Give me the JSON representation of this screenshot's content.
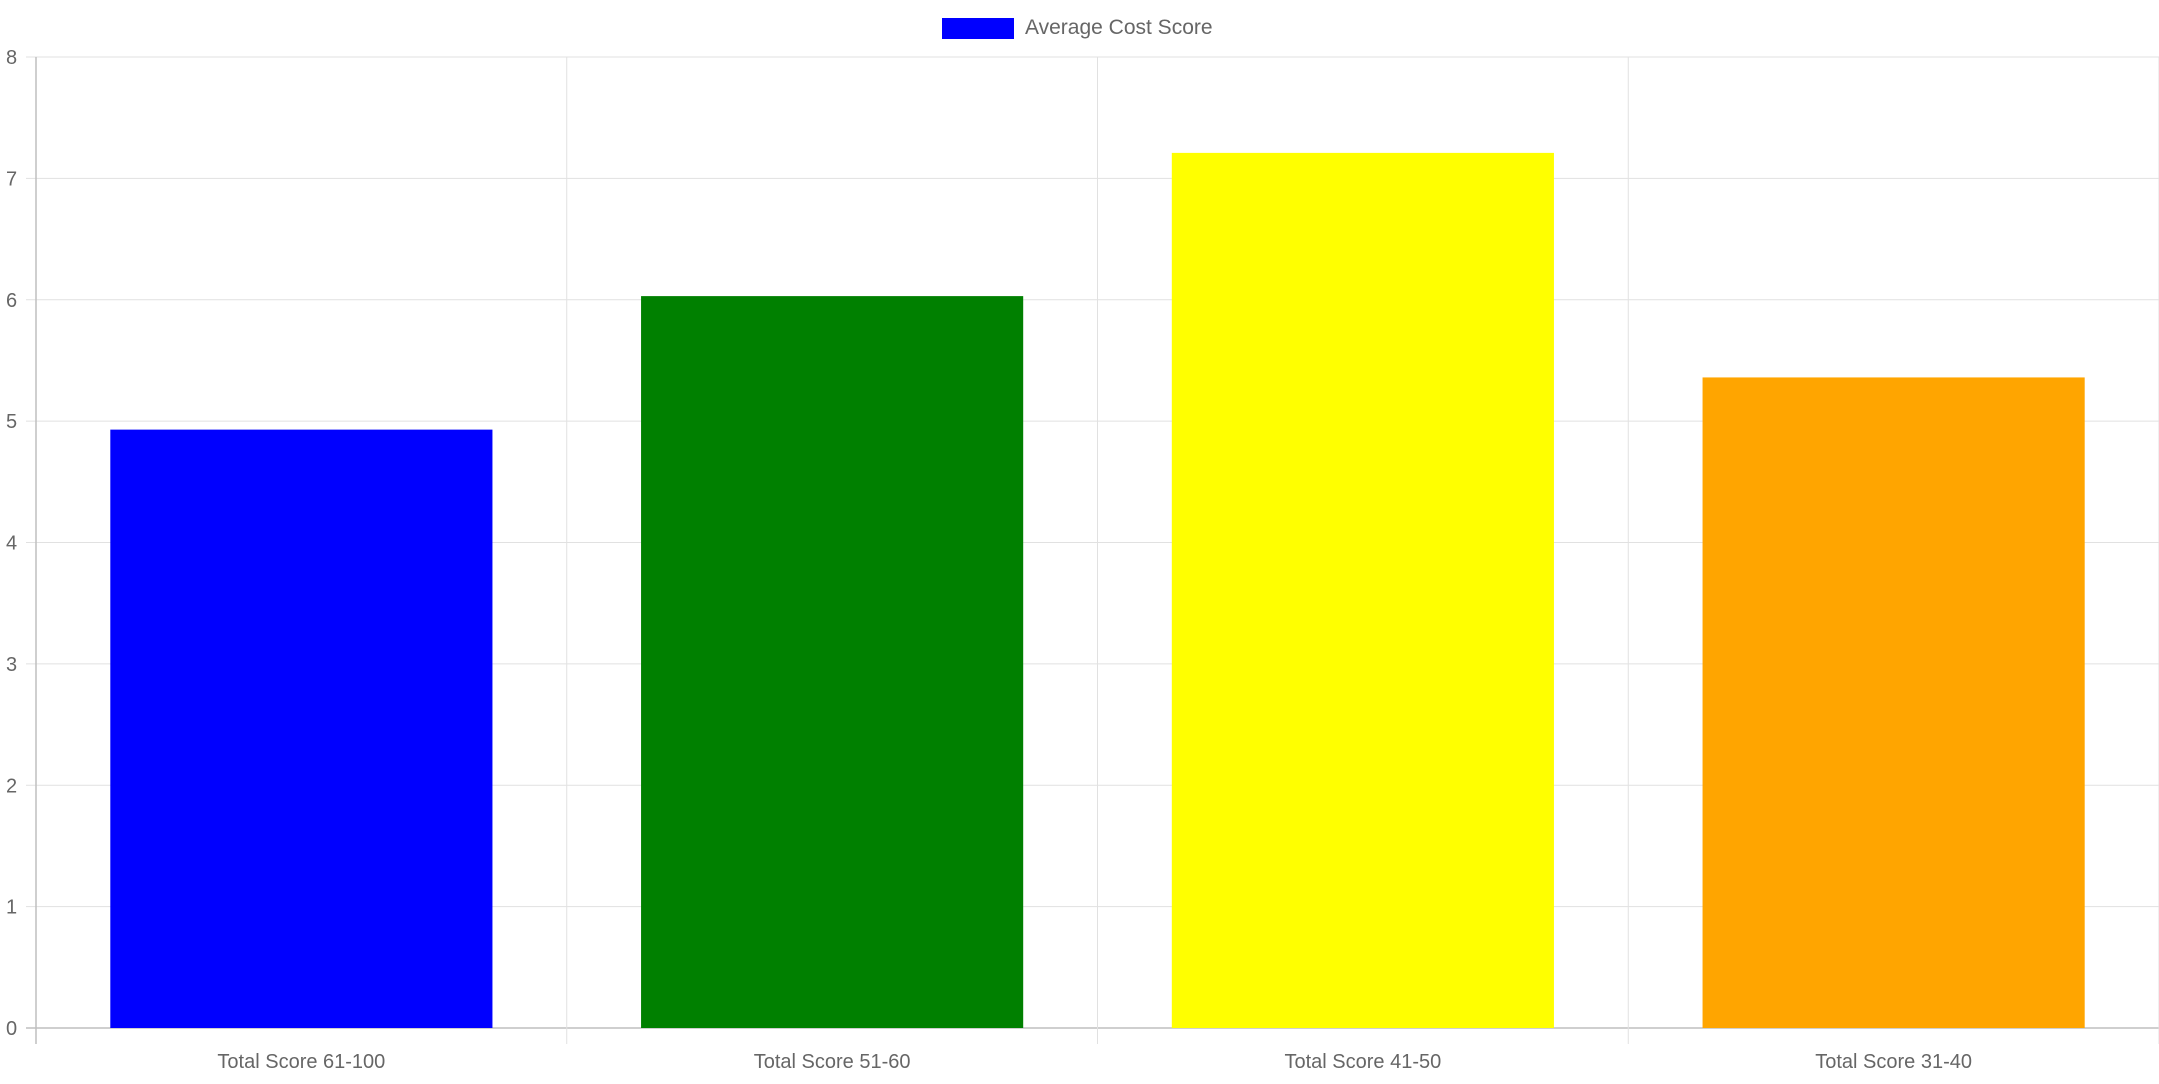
{
  "chart_data": {
    "type": "bar",
    "categories": [
      "Total Score 61-100",
      "Total Score 51-60",
      "Total Score 41-50",
      "Total Score 31-40"
    ],
    "series": [
      {
        "name": "Average Cost Score",
        "values": [
          4.93,
          6.03,
          7.21,
          5.36
        ]
      }
    ],
    "bar_colors": [
      "#0000ff",
      "#008000",
      "#ffff00",
      "#ffa500"
    ],
    "legend_color": "#0000ff",
    "yticks": [
      "0",
      "1",
      "2",
      "3",
      "4",
      "5",
      "6",
      "7",
      "8"
    ],
    "ylim": [
      0,
      8
    ],
    "grid": true,
    "legend_position": "top-center",
    "title": "",
    "xlabel": "",
    "ylabel": ""
  }
}
